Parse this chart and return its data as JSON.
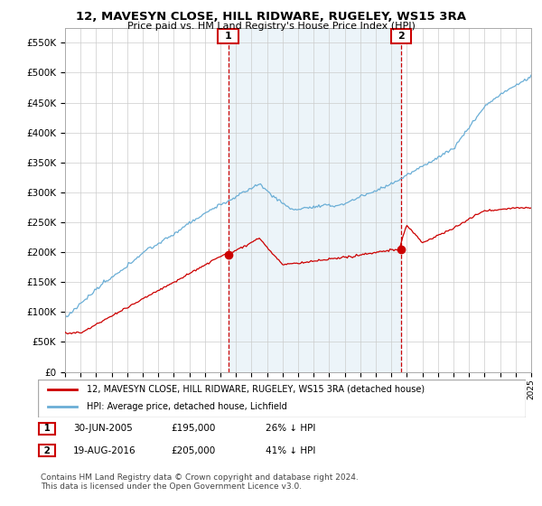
{
  "title": "12, MAVESYN CLOSE, HILL RIDWARE, RUGELEY, WS15 3RA",
  "subtitle": "Price paid vs. HM Land Registry's House Price Index (HPI)",
  "ylim": [
    0,
    575000
  ],
  "yticks": [
    0,
    50000,
    100000,
    150000,
    200000,
    250000,
    300000,
    350000,
    400000,
    450000,
    500000,
    550000
  ],
  "ytick_labels": [
    "£0",
    "£50K",
    "£100K",
    "£150K",
    "£200K",
    "£250K",
    "£300K",
    "£350K",
    "£400K",
    "£450K",
    "£500K",
    "£550K"
  ],
  "x_start_year": 1995,
  "x_end_year": 2025,
  "marker1_date": 2005.5,
  "marker1_value": 195000,
  "marker1_label": "1",
  "marker2_date": 2016.63,
  "marker2_value": 205000,
  "marker2_label": "2",
  "hpi_color": "#6aaed6",
  "hpi_fill_color": "#daeaf5",
  "price_color": "#cc0000",
  "marker_box_color": "#cc0000",
  "vline_color": "#cc0000",
  "legend_line1": "12, MAVESYN CLOSE, HILL RIDWARE, RUGELEY, WS15 3RA (detached house)",
  "legend_line2": "HPI: Average price, detached house, Lichfield",
  "marker1_date_str": "30-JUN-2005",
  "marker1_price_str": "£195,000",
  "marker1_hpi_str": "26% ↓ HPI",
  "marker2_date_str": "19-AUG-2016",
  "marker2_price_str": "£205,000",
  "marker2_hpi_str": "41% ↓ HPI",
  "footer": "Contains HM Land Registry data © Crown copyright and database right 2024.\nThis data is licensed under the Open Government Licence v3.0.",
  "background_color": "#ffffff",
  "grid_color": "#cccccc"
}
